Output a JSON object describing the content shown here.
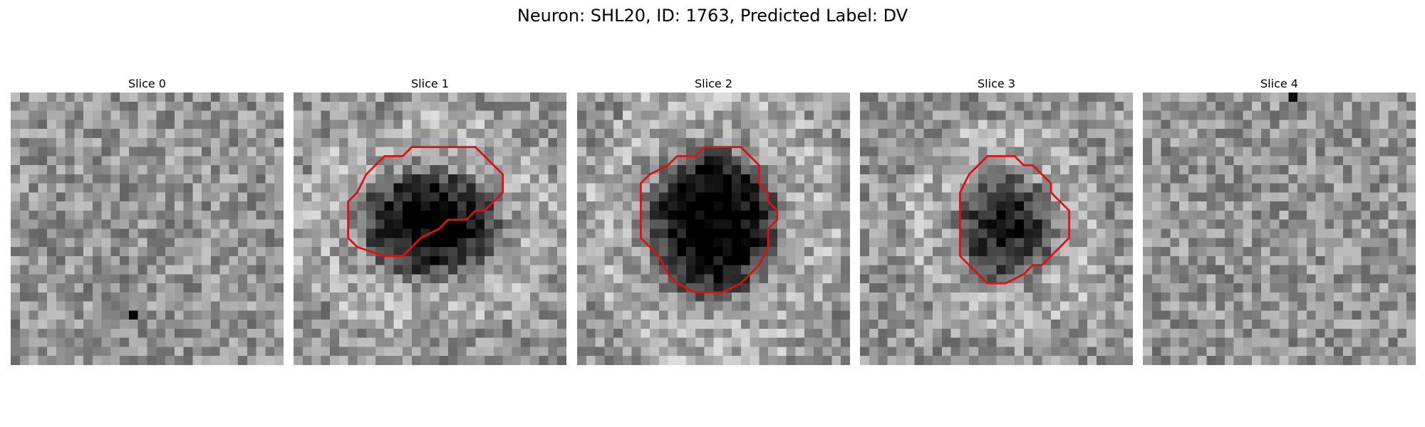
{
  "figure": {
    "title": "Neuron: SHL20, ID: 1763, Predicted Label: DV",
    "roi_color": "#e01010",
    "colormap": "gray"
  },
  "panels": [
    {
      "title": "Slice 0",
      "has_roi": false,
      "blob": null
    },
    {
      "title": "Slice 1",
      "has_roi": true,
      "blob": {
        "cx": 15.0,
        "cy": 14.5,
        "rx": 7.0,
        "ry": 5.5,
        "depth": 0.62
      },
      "roi": [
        [
          13,
          6
        ],
        [
          20,
          6
        ],
        [
          23,
          9
        ],
        [
          23,
          11
        ],
        [
          21,
          13
        ],
        [
          20,
          13
        ],
        [
          19,
          14
        ],
        [
          17,
          14
        ],
        [
          16,
          15
        ],
        [
          14,
          16
        ],
        [
          13,
          17
        ],
        [
          12,
          18
        ],
        [
          10,
          18
        ],
        [
          7,
          17
        ],
        [
          6,
          16
        ],
        [
          6,
          12
        ],
        [
          7,
          11
        ],
        [
          8,
          9
        ],
        [
          9,
          8
        ],
        [
          10,
          7
        ],
        [
          12,
          7
        ]
      ]
    },
    {
      "title": "Slice 2",
      "has_roi": true,
      "blob": {
        "cx": 15.0,
        "cy": 14.5,
        "rx": 6.5,
        "ry": 7.5,
        "depth": 0.68
      },
      "roi": [
        [
          15,
          6
        ],
        [
          18,
          6
        ],
        [
          20,
          8
        ],
        [
          20,
          10
        ],
        [
          21,
          11
        ],
        [
          21,
          12
        ],
        [
          22,
          13
        ],
        [
          22,
          14
        ],
        [
          21,
          15
        ],
        [
          21,
          17
        ],
        [
          20,
          19
        ],
        [
          18,
          21
        ],
        [
          16,
          22
        ],
        [
          13,
          22
        ],
        [
          11,
          21
        ],
        [
          10,
          20
        ],
        [
          9,
          18
        ],
        [
          8,
          17
        ],
        [
          7,
          16
        ],
        [
          7,
          10
        ],
        [
          8,
          9
        ],
        [
          10,
          8
        ],
        [
          11,
          7
        ],
        [
          13,
          7
        ],
        [
          14,
          6
        ]
      ]
    },
    {
      "title": "Slice 3",
      "has_roi": true,
      "blob": {
        "cx": 16.0,
        "cy": 15.0,
        "rx": 5.0,
        "ry": 5.5,
        "depth": 0.48
      },
      "roi": [
        [
          14,
          7
        ],
        [
          17,
          7
        ],
        [
          18,
          8
        ],
        [
          19,
          8
        ],
        [
          21,
          10
        ],
        [
          21,
          11
        ],
        [
          23,
          13
        ],
        [
          23,
          16
        ],
        [
          22,
          17
        ],
        [
          21,
          18
        ],
        [
          20,
          19
        ],
        [
          19,
          19
        ],
        [
          18,
          20
        ],
        [
          16,
          21
        ],
        [
          14,
          21
        ],
        [
          12,
          19
        ],
        [
          11,
          18
        ],
        [
          11,
          11
        ],
        [
          12,
          9
        ]
      ]
    },
    {
      "title": "Slice 4",
      "has_roi": false,
      "blob": null
    }
  ]
}
